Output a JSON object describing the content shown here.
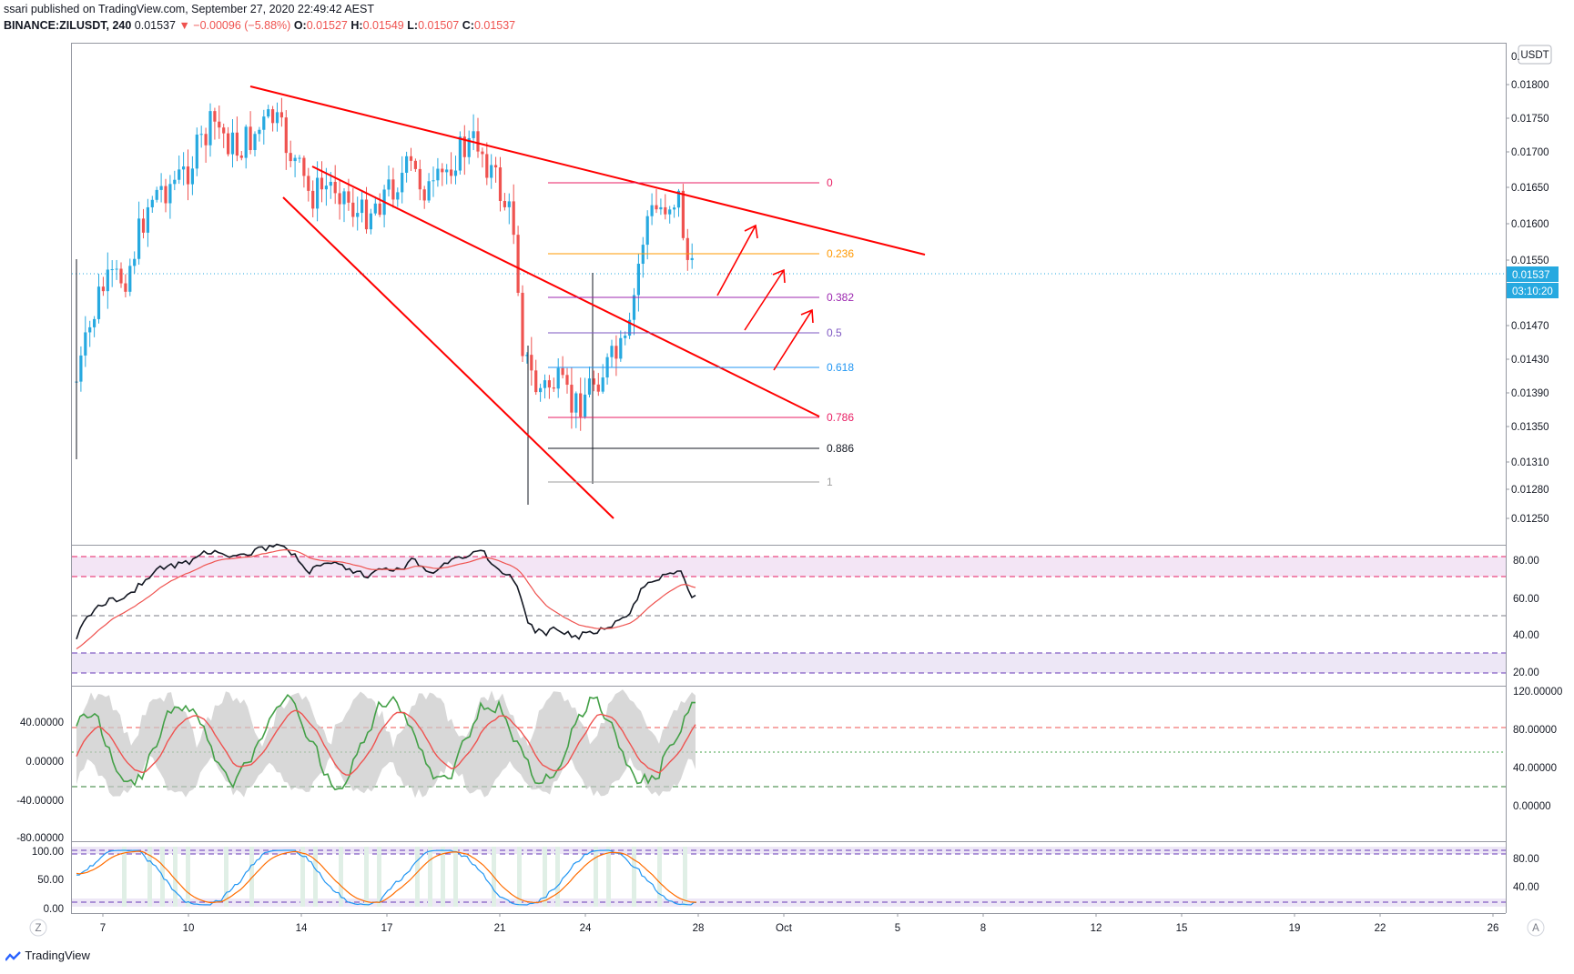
{
  "header": {
    "line1": "ssari published on TradingView.com, September 27, 2020 22:49:42 AEST",
    "symbol": "BINANCE:ZILUSDT, 240",
    "last": "0.01537",
    "change": "▼ −0.00096 (−5.88%)",
    "open_label": "O:",
    "open": "0.01527",
    "high_label": "H:",
    "high": "0.01549",
    "low_label": "L:",
    "low": "0.01507",
    "close_label": "C:",
    "close": "0.01537"
  },
  "price_axis": {
    "currency_badge": "USDT",
    "top_partial": "0.",
    "ticks": [
      "0.01800",
      "0.01750",
      "0.01700",
      "0.01650",
      "0.01600",
      "0.01550",
      "0.01470",
      "0.01430",
      "0.01390",
      "0.01350",
      "0.01310",
      "0.01280",
      "0.01250"
    ],
    "last_price_label": "0.01537",
    "countdown_label": "03:10:20"
  },
  "fib": {
    "levels": [
      {
        "label": "0",
        "price": 0.0166,
        "color": "#e91e63"
      },
      {
        "label": "0.236",
        "price": 0.01565,
        "color": "#ff9800"
      },
      {
        "label": "0.382",
        "price": 0.01515,
        "color": "#9c27b0"
      },
      {
        "label": "0.5",
        "price": 0.01467,
        "color": "#7e57c2"
      },
      {
        "label": "0.618",
        "price": 0.01421,
        "color": "#2196f3"
      },
      {
        "label": "0.786",
        "price": 0.01362,
        "color": "#e91e63"
      },
      {
        "label": "0.886",
        "price": 0.01331,
        "color": "#131722"
      },
      {
        "label": "1",
        "price": 0.01293,
        "color": "#9e9e9e"
      }
    ]
  },
  "rsi_axis": {
    "ticks": [
      "80.00",
      "60.00",
      "40.00",
      "20.00"
    ]
  },
  "cci_axis": {
    "left_ticks": [
      "40.00000",
      "0.00000",
      "-40.00000",
      "-80.00000"
    ],
    "right_ticks": [
      "120.00000",
      "80.00000",
      "40.00000",
      "0.00000"
    ]
  },
  "stoch_axis": {
    "left_ticks": [
      "100.00",
      "50.00",
      "0.00"
    ],
    "right_ticks": [
      "80.00",
      "40.00"
    ]
  },
  "time_axis": {
    "labels": [
      "7",
      "10",
      "14",
      "17",
      "21",
      "24",
      "28",
      "Oct",
      "5",
      "8",
      "12",
      "15",
      "19",
      "22",
      "26"
    ],
    "left_button": "Z",
    "right_button": "A"
  },
  "footer": {
    "brand": "TradingView"
  },
  "colors": {
    "up": "#26a9e0",
    "down": "#ef5350",
    "trend": "#ff0000",
    "rsi_band": "#f3e5f5",
    "last_price_bg": "#26a9e0"
  },
  "chart_data": {
    "type": "candlestick",
    "symbol": "ZILUSDT",
    "interval": "240",
    "ylim": [
      0.0122,
      0.0183
    ],
    "ohlc_sample": {
      "o": 0.01527,
      "h": 0.01549,
      "l": 0.01507,
      "c": 0.01537
    },
    "indicators": [
      "RSI",
      "CCI",
      "Stochastic RSI"
    ]
  }
}
